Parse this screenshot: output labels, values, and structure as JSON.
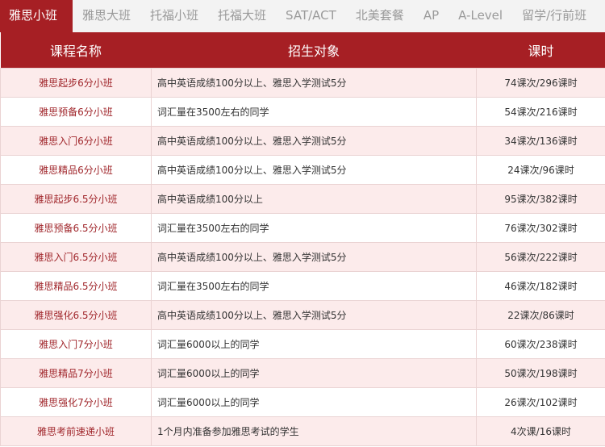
{
  "tabs": [
    "雅思小班",
    "雅思大班",
    "托福小班",
    "托福大班",
    "SAT/ACT",
    "北美套餐",
    "AP",
    "A-Level",
    "留学/行前班"
  ],
  "active_tab": 0,
  "table": {
    "headers": [
      "课程名称",
      "招生对象",
      "课时"
    ],
    "rows": [
      [
        "雅思起步6分小班",
        "高中英语成绩100分以上、雅思入学测试5分",
        "74课次/296课时"
      ],
      [
        "雅思预备6分小班",
        "词汇量在3500左右的同学",
        "54课次/216课时"
      ],
      [
        "雅思入门6分小班",
        "高中英语成绩100分以上、雅思入学测试5分",
        "34课次/136课时"
      ],
      [
        "雅思精品6分小班",
        "高中英语成绩100分以上、雅思入学测试5分",
        "24课次/96课时"
      ],
      [
        "雅思起步6.5分小班",
        "高中英语成绩100分以上",
        "95课次/382课时"
      ],
      [
        "雅思预备6.5分小班",
        "词汇量在3500左右的同学",
        "76课次/302课时"
      ],
      [
        "雅思入门6.5分小班",
        "高中英语成绩100分以上、雅思入学测试5分",
        "56课次/222课时"
      ],
      [
        "雅思精品6.5分小班",
        "词汇量在3500左右的同学",
        "46课次/182课时"
      ],
      [
        "雅思强化6.5分小班",
        "高中英语成绩100分以上、雅思入学测试5分",
        "22课次/86课时"
      ],
      [
        "雅思入门7分小班",
        "词汇量6000以上的同学",
        "60课次/238课时"
      ],
      [
        "雅思精品7分小班",
        "词汇量6000以上的同学",
        "50课次/198课时"
      ],
      [
        "雅思强化7分小班",
        "词汇量6000以上的同学",
        "26课次/102课时"
      ],
      [
        "雅思考前速递小班",
        "1个月内准备参加雅思考试的学生",
        "4次课/16课时"
      ]
    ]
  },
  "colors": {
    "accent": "#a61f24",
    "row_alt": "#fcebeb"
  }
}
